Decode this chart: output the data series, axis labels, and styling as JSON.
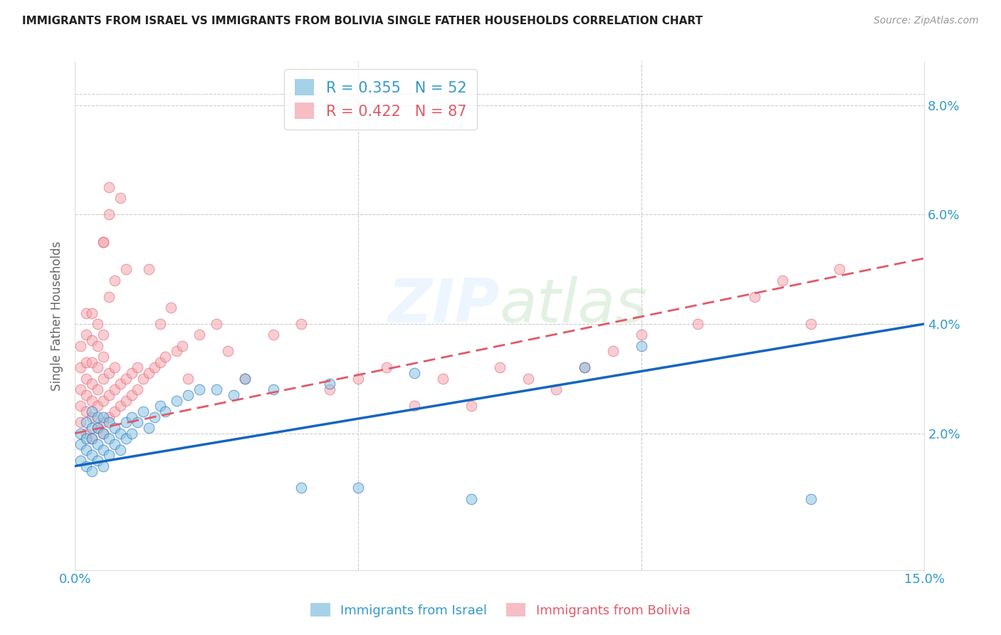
{
  "title": "IMMIGRANTS FROM ISRAEL VS IMMIGRANTS FROM BOLIVIA SINGLE FATHER HOUSEHOLDS CORRELATION CHART",
  "source": "Source: ZipAtlas.com",
  "ylabel": "Single Father Households",
  "xlim": [
    0.0,
    0.15
  ],
  "ylim": [
    -0.005,
    0.088
  ],
  "israel_color": "#89c4e1",
  "bolivia_color": "#f4a7b0",
  "israel_R": "0.355",
  "israel_N": "52",
  "bolivia_R": "0.422",
  "bolivia_N": "87",
  "israel_line_color": "#1565c0",
  "bolivia_line_color": "#e05a6a",
  "israel_line_x0": 0.0,
  "israel_line_y0": 0.014,
  "israel_line_x1": 0.15,
  "israel_line_y1": 0.04,
  "bolivia_line_x0": 0.0,
  "bolivia_line_y0": 0.02,
  "bolivia_line_x1": 0.15,
  "bolivia_line_y1": 0.052,
  "israel_scatter_x": [
    0.001,
    0.001,
    0.001,
    0.002,
    0.002,
    0.002,
    0.002,
    0.003,
    0.003,
    0.003,
    0.003,
    0.003,
    0.004,
    0.004,
    0.004,
    0.004,
    0.005,
    0.005,
    0.005,
    0.005,
    0.006,
    0.006,
    0.006,
    0.007,
    0.007,
    0.008,
    0.008,
    0.009,
    0.009,
    0.01,
    0.01,
    0.011,
    0.012,
    0.013,
    0.014,
    0.015,
    0.016,
    0.018,
    0.02,
    0.022,
    0.025,
    0.028,
    0.03,
    0.035,
    0.04,
    0.045,
    0.05,
    0.06,
    0.07,
    0.09,
    0.1,
    0.13
  ],
  "israel_scatter_y": [
    0.015,
    0.018,
    0.02,
    0.014,
    0.017,
    0.019,
    0.022,
    0.013,
    0.016,
    0.019,
    0.021,
    0.024,
    0.015,
    0.018,
    0.021,
    0.023,
    0.014,
    0.017,
    0.02,
    0.023,
    0.016,
    0.019,
    0.022,
    0.018,
    0.021,
    0.017,
    0.02,
    0.019,
    0.022,
    0.02,
    0.023,
    0.022,
    0.024,
    0.021,
    0.023,
    0.025,
    0.024,
    0.026,
    0.027,
    0.028,
    0.028,
    0.027,
    0.03,
    0.028,
    0.01,
    0.029,
    0.01,
    0.031,
    0.008,
    0.032,
    0.036,
    0.008
  ],
  "bolivia_scatter_x": [
    0.001,
    0.001,
    0.001,
    0.001,
    0.001,
    0.002,
    0.002,
    0.002,
    0.002,
    0.002,
    0.002,
    0.002,
    0.003,
    0.003,
    0.003,
    0.003,
    0.003,
    0.003,
    0.003,
    0.004,
    0.004,
    0.004,
    0.004,
    0.004,
    0.004,
    0.005,
    0.005,
    0.005,
    0.005,
    0.005,
    0.005,
    0.006,
    0.006,
    0.006,
    0.006,
    0.007,
    0.007,
    0.007,
    0.007,
    0.008,
    0.008,
    0.008,
    0.009,
    0.009,
    0.009,
    0.01,
    0.01,
    0.011,
    0.011,
    0.012,
    0.013,
    0.013,
    0.014,
    0.015,
    0.015,
    0.016,
    0.017,
    0.018,
    0.019,
    0.02,
    0.022,
    0.025,
    0.027,
    0.03,
    0.035,
    0.04,
    0.045,
    0.05,
    0.055,
    0.06,
    0.065,
    0.07,
    0.075,
    0.08,
    0.085,
    0.09,
    0.095,
    0.1,
    0.11,
    0.12,
    0.125,
    0.13,
    0.135,
    0.005,
    0.005,
    0.006,
    0.006
  ],
  "bolivia_scatter_y": [
    0.022,
    0.025,
    0.028,
    0.032,
    0.036,
    0.02,
    0.024,
    0.027,
    0.03,
    0.033,
    0.038,
    0.042,
    0.019,
    0.023,
    0.026,
    0.029,
    0.033,
    0.037,
    0.042,
    0.021,
    0.025,
    0.028,
    0.032,
    0.036,
    0.04,
    0.022,
    0.026,
    0.03,
    0.034,
    0.038,
    0.055,
    0.023,
    0.027,
    0.031,
    0.045,
    0.024,
    0.028,
    0.032,
    0.048,
    0.025,
    0.029,
    0.063,
    0.026,
    0.03,
    0.05,
    0.027,
    0.031,
    0.028,
    0.032,
    0.03,
    0.031,
    0.05,
    0.032,
    0.033,
    0.04,
    0.034,
    0.043,
    0.035,
    0.036,
    0.03,
    0.038,
    0.04,
    0.035,
    0.03,
    0.038,
    0.04,
    0.028,
    0.03,
    0.032,
    0.025,
    0.03,
    0.025,
    0.032,
    0.03,
    0.028,
    0.032,
    0.035,
    0.038,
    0.04,
    0.045,
    0.048,
    0.04,
    0.05,
    0.02,
    0.055,
    0.06,
    0.065
  ]
}
